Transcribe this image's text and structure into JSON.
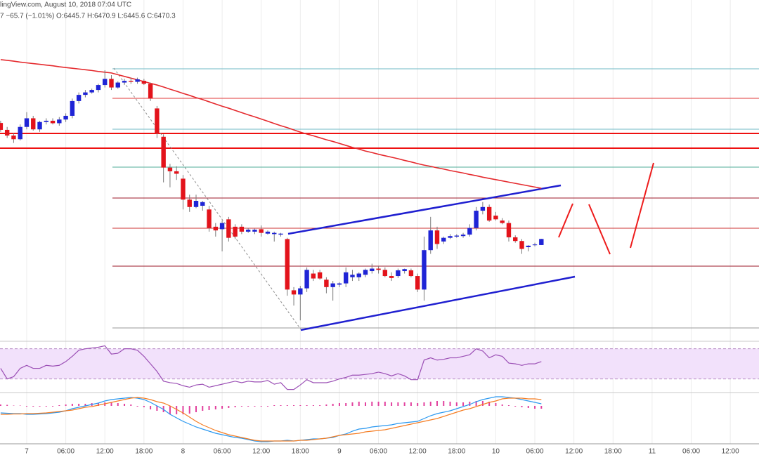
{
  "chart_data": {
    "type": "candlestick",
    "title": "lingView.com, August 10, 2018 07:04 UTC",
    "subtitle": "7 −65.7 (−1.01%) O:6445.7 H:6470.9 L:6445.6 C:6470.3",
    "categories": [
      null,
      null,
      null,
      null,
      "7",
      null,
      null,
      null,
      null,
      null,
      "06:00",
      null,
      null,
      null,
      null,
      null,
      "12:00",
      null,
      null,
      null,
      null,
      null,
      "18:00",
      null,
      null,
      null,
      null,
      null,
      "8",
      null,
      null,
      null,
      null,
      null,
      "06:00",
      null,
      null,
      null,
      null,
      null,
      "12:00",
      null,
      null,
      null,
      null,
      null,
      "18:00",
      null,
      null,
      null,
      null,
      null,
      "9",
      null,
      null,
      null,
      null,
      null,
      "06:00",
      null,
      null,
      null,
      null,
      null,
      "12:00",
      null,
      null,
      null,
      null,
      null,
      "18:00",
      null,
      null,
      null,
      null,
      null,
      "10",
      null,
      null,
      null,
      null,
      null,
      "06:00",
      null,
      null,
      null,
      null,
      null,
      "12:00",
      null,
      null,
      null,
      null,
      null,
      "18:00",
      null,
      null,
      null,
      null,
      null,
      "11",
      null,
      null,
      null,
      null,
      null,
      "06:00",
      null,
      null,
      null,
      null,
      null,
      "12:00"
    ],
    "open": [
      6941,
      6913,
      6890,
      6875,
      6925,
      6960,
      6915,
      6945,
      6950,
      6940,
      6955,
      6970,
      7030,
      7055,
      7065,
      7075,
      7095,
      7120,
      7085,
      7105,
      7112,
      7108,
      7112,
      7100,
      7000,
      6885,
      6760,
      6745,
      6715,
      6630,
      6600,
      6605,
      6590,
      6520,
      6510,
      6550,
      6520,
      6520,
      6500,
      6500,
      6510,
      6492,
      6490,
      6488,
      6470,
      6262,
      6245,
      6270,
      6330,
      6335,
      6305,
      6275,
      6285,
      6290,
      6315,
      6315,
      6325,
      6340,
      6350,
      6345,
      6320,
      6320,
      6340,
      6343,
      6320,
      6265,
      6425,
      6505,
      6460,
      6475,
      6480,
      6482,
      6488,
      6515,
      6585,
      6600,
      6565,
      6545,
      6535,
      6477,
      6462,
      6437,
      6445,
      6445.7,
      null,
      null,
      null,
      null,
      null,
      null,
      null,
      null,
      null,
      null,
      null,
      null,
      null,
      null,
      null,
      null,
      null,
      null,
      null,
      null,
      null,
      null,
      null,
      null,
      null,
      null,
      null,
      null,
      null
    ],
    "high": [
      6950,
      6925,
      6900,
      6935,
      6985,
      6970,
      6950,
      6960,
      6960,
      6965,
      6980,
      7040,
      7065,
      7075,
      7080,
      7100,
      7155,
      7135,
      7110,
      7120,
      7125,
      7125,
      7120,
      7105,
      7010,
      6895,
      6775,
      6765,
      6730,
      6650,
      6650,
      6625,
      6605,
      6535,
      6545,
      6560,
      6530,
      6530,
      6515,
      6512,
      6525,
      6505,
      6500,
      6495,
      6475,
      6275,
      6280,
      6355,
      6345,
      6345,
      6315,
      6300,
      6295,
      6355,
      6345,
      6335,
      6350,
      6370,
      6360,
      6355,
      6335,
      6350,
      6350,
      6350,
      6330,
      6480,
      6560,
      6520,
      6480,
      6490,
      6490,
      6495,
      6530,
      6600,
      6620,
      6610,
      6580,
      6555,
      6545,
      6485,
      6470,
      6445,
      6455,
      6470.9,
      null,
      null,
      null,
      null,
      null,
      null,
      null,
      null,
      null,
      null,
      null,
      null,
      null,
      null,
      null,
      null,
      null,
      null,
      null,
      null,
      null,
      null,
      null,
      null,
      null,
      null,
      null,
      null,
      null
    ],
    "low": [
      6905,
      6880,
      6860,
      6870,
      6915,
      6910,
      6905,
      6935,
      6935,
      6930,
      6945,
      6960,
      7020,
      7045,
      7060,
      7065,
      7085,
      7075,
      7080,
      7095,
      7100,
      7100,
      7095,
      7030,
      6880,
      6700,
      6680,
      6710,
      6590,
      6580,
      6595,
      6585,
      6500,
      6480,
      6420,
      6460,
      6470,
      6490,
      6495,
      6490,
      6480,
      6488,
      6460,
      6480,
      6240,
      6200,
      6140,
      6255,
      6300,
      6305,
      6250,
      6220,
      6275,
      6275,
      6300,
      6300,
      6315,
      6330,
      6330,
      6315,
      6300,
      6312,
      6330,
      6315,
      6255,
      6220,
      6410,
      6430,
      6450,
      6470,
      6475,
      6475,
      6480,
      6505,
      6570,
      6540,
      6545,
      6530,
      6460,
      6455,
      6410,
      6420,
      6440,
      6445.6,
      null,
      null,
      null,
      null,
      null,
      null,
      null,
      null,
      null,
      null,
      null,
      null,
      null,
      null,
      null,
      null,
      null,
      null,
      null,
      null,
      null,
      null,
      null,
      null,
      null,
      null,
      null,
      null,
      null
    ],
    "close": [
      6913,
      6890,
      6875,
      6925,
      6960,
      6915,
      6945,
      6950,
      6940,
      6955,
      6970,
      7030,
      7055,
      7065,
      7075,
      7095,
      7120,
      7085,
      7105,
      7112,
      7108,
      7118,
      7100,
      7040,
      6900,
      6760,
      6745,
      6735,
      6630,
      6600,
      6625,
      6620,
      6515,
      6505,
      6535,
      6475,
      6480,
      6500,
      6508,
      6508,
      6495,
      6500,
      6495,
      6492,
      6265,
      6245,
      6270,
      6345,
      6310,
      6310,
      6275,
      6290,
      6290,
      6335,
      6325,
      6330,
      6345,
      6350,
      6345,
      6320,
      6312,
      6343,
      6348,
      6320,
      6265,
      6425,
      6505,
      6450,
      6475,
      6482,
      6484,
      6488,
      6515,
      6585,
      6600,
      6545,
      6550,
      6535,
      6477,
      6462,
      6430,
      6443,
      6448,
      6470.3,
      null,
      null,
      null,
      null,
      null,
      null,
      null,
      null,
      null,
      null,
      null,
      null,
      null,
      null,
      null,
      null,
      null,
      null,
      null,
      null,
      null,
      null,
      null,
      null,
      null,
      null,
      null,
      null,
      null
    ],
    "up_color": "#1f24d6",
    "down_color": "#e3131b",
    "ylim": [
      6058,
      7440
    ],
    "grid": true,
    "moving_average": {
      "color": "#e52a2e",
      "values": [
        7198,
        7195,
        7192,
        7188,
        7185,
        7182,
        7179,
        7176,
        7173,
        7169,
        7166,
        7163,
        7160,
        7157,
        7154,
        7150,
        7147,
        7144,
        7137,
        7130,
        7123,
        7116,
        7109,
        7102,
        7095,
        7087,
        7078,
        7070,
        7061,
        7053,
        7044,
        7036,
        7027,
        7018,
        7009,
        7001,
        6992,
        6983,
        6974,
        6966,
        6957,
        6948,
        6939,
        6930,
        6922,
        6913,
        6904,
        6896,
        6889,
        6881,
        6873,
        6866,
        6858,
        6850,
        6842,
        6835,
        6827,
        6821,
        6814,
        6808,
        6802,
        6796,
        6789,
        6783,
        6776,
        6770,
        6765,
        6759,
        6754,
        6748,
        6743,
        6738,
        6732,
        6727,
        6721,
        6716,
        6711,
        6706,
        6701,
        6696,
        6691,
        6686,
        6681,
        6676,
        null,
        null,
        null,
        null,
        null,
        null,
        null,
        null,
        null,
        null,
        null,
        null,
        null,
        null,
        null,
        null,
        null,
        null,
        null,
        null,
        null,
        null,
        null,
        null,
        null,
        null,
        null,
        null,
        null
      ]
    },
    "rsi": {
      "color": "#9b4fb5",
      "band_color": "#f2e1fb",
      "ylim": [
        11,
        79
      ],
      "bands": [
        30,
        70
      ],
      "values": [
        44,
        30,
        33,
        44,
        48,
        44,
        44,
        48,
        47,
        48,
        53,
        60,
        68,
        70,
        71,
        72,
        74,
        63,
        64,
        70,
        70,
        68,
        60,
        50,
        40,
        27,
        25,
        24,
        21,
        19,
        22,
        23,
        19,
        21,
        23,
        25,
        27,
        25,
        27,
        26,
        26,
        28,
        23,
        25,
        16,
        16,
        22,
        29,
        25,
        25,
        25,
        27,
        30,
        32,
        35,
        35,
        36,
        37,
        39,
        37,
        34,
        37,
        34,
        29,
        29,
        55,
        58,
        55,
        56,
        58,
        58,
        60,
        62,
        70,
        67,
        58,
        62,
        60,
        51,
        50,
        48,
        50,
        50,
        53,
        null,
        null,
        null,
        null,
        null,
        null,
        null,
        null,
        null,
        null,
        null,
        null,
        null,
        null,
        null,
        null,
        null,
        null,
        null,
        null,
        null,
        null,
        null,
        null,
        null,
        null,
        null,
        null,
        null
      ]
    },
    "macd": {
      "ylim": [
        -108,
        36
      ],
      "macd_color": "#2a98f0",
      "signal_color": "#f57d23",
      "histogram_color": "#e2409e",
      "macd": [
        -20,
        -21,
        -22,
        -22,
        -24,
        -24,
        -23,
        -22,
        -20,
        -18,
        -14,
        -8,
        -4,
        0,
        4,
        8,
        14,
        18,
        20,
        22,
        24,
        22,
        18,
        10,
        0,
        -10,
        -24,
        -34,
        -44,
        -52,
        -60,
        -66,
        -72,
        -78,
        -82,
        -86,
        -90,
        -92,
        -96,
        -100,
        -102,
        -102,
        -100,
        -100,
        -98,
        -100,
        -98,
        -96,
        -94,
        -94,
        -92,
        -90,
        -84,
        -80,
        -72,
        -66,
        -64,
        -60,
        -58,
        -56,
        -54,
        -50,
        -48,
        -46,
        -44,
        -36,
        -28,
        -22,
        -18,
        -14,
        -8,
        -2,
        4,
        12,
        18,
        22,
        26,
        26,
        24,
        22,
        18,
        14,
        10,
        6,
        null,
        null,
        null,
        null,
        null,
        null,
        null,
        null,
        null,
        null,
        null,
        null,
        null,
        null,
        null,
        null,
        null,
        null,
        null,
        null,
        null,
        null,
        null,
        null,
        null,
        null,
        null,
        null,
        null
      ],
      "signal": [
        -24,
        -24,
        -23,
        -23,
        -22,
        -22,
        -21,
        -20,
        -18,
        -16,
        -14,
        -12,
        -8,
        -4,
        -2,
        2,
        6,
        10,
        14,
        18,
        22,
        24,
        22,
        18,
        12,
        8,
        0,
        -10,
        -20,
        -32,
        -44,
        -54,
        -62,
        -70,
        -76,
        -82,
        -86,
        -90,
        -94,
        -98,
        -100,
        -100,
        -100,
        -100,
        -100,
        -100,
        -98,
        -98,
        -96,
        -94,
        -92,
        -88,
        -84,
        -82,
        -80,
        -78,
        -74,
        -72,
        -70,
        -68,
        -64,
        -60,
        -56,
        -52,
        -48,
        -44,
        -40,
        -36,
        -30,
        -24,
        -18,
        -12,
        -8,
        -2,
        4,
        10,
        14,
        20,
        22,
        22,
        22,
        20,
        20,
        18,
        null,
        null,
        null,
        null,
        null,
        null,
        null,
        null,
        null,
        null,
        null,
        null,
        null,
        null,
        null,
        null,
        null,
        null,
        null,
        null,
        null,
        null,
        null,
        null,
        null,
        null,
        null,
        null,
        null
      ],
      "histogram": [
        4,
        3,
        1,
        1,
        -2,
        -2,
        -2,
        -2,
        -2,
        2,
        4,
        6,
        6,
        6,
        8,
        8,
        10,
        10,
        8,
        6,
        4,
        -2,
        -4,
        -10,
        -14,
        -18,
        -24,
        -24,
        -24,
        -22,
        -18,
        -14,
        -12,
        -10,
        -8,
        -6,
        -4,
        -2,
        -2,
        -2,
        -2,
        -2,
        2,
        2,
        2,
        2,
        2,
        2,
        2,
        2,
        4,
        6,
        8,
        8,
        10,
        12,
        10,
        12,
        12,
        12,
        10,
        10,
        10,
        10,
        8,
        10,
        12,
        14,
        14,
        12,
        10,
        10,
        12,
        14,
        14,
        12,
        8,
        4,
        2,
        -2,
        -4,
        -6,
        -8,
        -8,
        null,
        null,
        null,
        null,
        null,
        null,
        null,
        null,
        null,
        null,
        null,
        null,
        null,
        null,
        null,
        null,
        null,
        null,
        null,
        null,
        null,
        null,
        null,
        null,
        null,
        null,
        null,
        null,
        null
      ]
    }
  }
}
